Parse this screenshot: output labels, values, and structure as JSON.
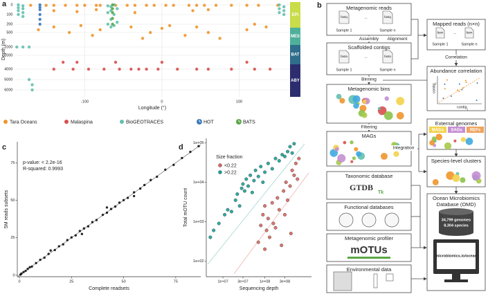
{
  "chart_data": [
    {
      "type": "scatter",
      "panel": "a",
      "xlabel": "Longitude (°)",
      "ylabel": "Depth (m)",
      "xlim": [
        -190,
        165
      ],
      "xticks": [
        -100,
        0,
        100
      ],
      "ylim": [
        -40,
        6600
      ],
      "yticks": [
        0,
        100,
        200,
        500,
        1000,
        2000,
        4000,
        5000,
        6000
      ],
      "grid": true,
      "zones": [
        "EPI",
        "MES",
        "BAT",
        "ABY"
      ],
      "zone_colors": [
        "#c9dc4a",
        "#4fb09a",
        "#2f6d8c",
        "#2b2d6e"
      ],
      "series": [
        {
          "name": "Tara Oceans",
          "color": "#f0952b",
          "x": [
            -170,
            -150,
            -140,
            -125,
            -110,
            -100,
            -85,
            -80,
            -60,
            -45,
            -35,
            -20,
            -10,
            5,
            15,
            35,
            45,
            55,
            70,
            90,
            110,
            125,
            150,
            -140,
            -110,
            -85,
            -35,
            40,
            60,
            -160,
            -140,
            -120,
            -105,
            -90,
            -80,
            -40,
            -25,
            -15,
            0,
            10,
            30,
            45,
            60,
            75,
            110,
            120,
            135
          ],
          "values": [
            5,
            5,
            5,
            5,
            5,
            5,
            5,
            5,
            5,
            5,
            5,
            5,
            5,
            5,
            5,
            5,
            5,
            5,
            5,
            5,
            5,
            5,
            5,
            60,
            70,
            50,
            80,
            60,
            50,
            400,
            300,
            500,
            250,
            600,
            400,
            300,
            700,
            500,
            350,
            250,
            600,
            300,
            500,
            700,
            400,
            200,
            300
          ]
        },
        {
          "name": "Malaspina",
          "color": "#d7504e",
          "x": [
            -140,
            -115,
            -95,
            -75,
            -55,
            -40,
            -30,
            -20,
            -5,
            20,
            45,
            60,
            90,
            120,
            140,
            -128,
            -110,
            -60,
            0,
            110
          ],
          "values": [
            4000,
            4000,
            4000,
            4000,
            4000,
            4000,
            4000,
            4000,
            4000,
            4000,
            4000,
            4000,
            4000,
            4000,
            4000,
            3000,
            3000,
            3000,
            3000,
            3000
          ]
        },
        {
          "name": "BioGEOTRACES",
          "color": "#62c0ae",
          "x": [
            -186,
            -186,
            -186,
            -186,
            -180,
            -180,
            -180,
            -180,
            -70,
            -70,
            -70,
            -66,
            -66,
            -66,
            -66,
            -62,
            -62,
            -62,
            -58,
            -58,
            152,
            152,
            152,
            158,
            158,
            158,
            -188,
            -180,
            -172,
            -172,
            -168,
            -168
          ],
          "values": [
            0,
            30,
            60,
            100,
            10,
            40,
            80,
            120,
            10,
            80,
            200,
            20,
            60,
            150,
            300,
            0,
            100,
            250,
            40,
            180,
            0,
            40,
            80,
            20,
            60,
            100,
            1000,
            1000,
            1000,
            5000,
            5500,
            6000
          ]
        },
        {
          "name": "HOT",
          "color": "#3d7ab8",
          "x": [
            -158,
            -158,
            -158,
            -158,
            -158,
            -158
          ],
          "values": [
            0,
            25,
            50,
            100,
            150,
            200
          ]
        },
        {
          "name": "BATS",
          "color": "#5aa645",
          "x": [
            -64,
            -64,
            -64,
            -64,
            -64
          ],
          "values": [
            0,
            40,
            80,
            140,
            200
          ]
        }
      ]
    },
    {
      "type": "scatter",
      "panel": "c",
      "xlabel": "Complete readsets",
      "ylabel": "5M reads subsets",
      "annotations": [
        "p-value: < 2.2e-16",
        "R-squared: 0.9993"
      ],
      "xlim": [
        -1,
        87
      ],
      "xticks": [
        0,
        25,
        50,
        75
      ],
      "ylim": [
        -1,
        89
      ],
      "yticks": [
        0,
        25,
        50,
        75
      ],
      "color": "#111111",
      "x": [
        0.5,
        1,
        2,
        3,
        4,
        5,
        6,
        8,
        10,
        12,
        14,
        15,
        17,
        19,
        21,
        23,
        25,
        27,
        29,
        31,
        33,
        35,
        37,
        40,
        42,
        44,
        46,
        48,
        50,
        52,
        55,
        58,
        60,
        63,
        66,
        70,
        74,
        78,
        82,
        86,
        30,
        42,
        55
      ],
      "values": [
        0.4,
        1.1,
        2.1,
        2.9,
        4.2,
        5.3,
        5.8,
        8.1,
        10.3,
        11.7,
        14.2,
        16.5,
        16.8,
        19.3,
        20.6,
        23.4,
        25.2,
        26.6,
        29.5,
        31.2,
        32.6,
        35.4,
        36.8,
        40.3,
        41.7,
        44.2,
        45.8,
        48.4,
        50.1,
        51.6,
        55.3,
        57.8,
        60.2,
        63.5,
        65.7,
        70.4,
        73.6,
        78.2,
        82.3,
        86.1,
        27.5,
        45.2,
        52.8
      ]
    },
    {
      "type": "scatter",
      "panel": "d",
      "xlabel": "Sequencing depth",
      "ylabel": "Total mOTU count",
      "log": true,
      "legend_title": "Size fraction",
      "xlim": [
        4000000.0,
        1300000000.0
      ],
      "xticks": [
        {
          "value": 10000000.0,
          "label": "1e+07"
        },
        {
          "value": 30000000.0,
          "label": "3e+07"
        },
        {
          "value": 100000000.0,
          "label": "1e+08"
        },
        {
          "value": 300000000.0,
          "label": "3e+08"
        }
      ],
      "ylim": [
        40,
        130000
      ],
      "yticks": [
        {
          "value": 100,
          "label": "1e+02"
        },
        {
          "value": 1000,
          "label": "1e+03"
        },
        {
          "value": 10000,
          "label": "1e+04"
        },
        {
          "value": 100000,
          "label": "1e+05"
        }
      ],
      "series": [
        {
          "name": "<0.22",
          "color": "#d8675e",
          "x": [
            70000000.0,
            80000000.0,
            90000000.0,
            100000000.0,
            100000000.0,
            110000000.0,
            120000000.0,
            130000000.0,
            150000000.0,
            160000000.0,
            180000000.0,
            200000000.0,
            220000000.0,
            250000000.0,
            280000000.0,
            300000000.0,
            320000000.0,
            350000000.0,
            400000000.0,
            420000000.0,
            450000000.0,
            500000000.0,
            550000000.0,
            600000000.0,
            650000000.0
          ],
          "values": [
            300,
            800,
            1500,
            200,
            2500,
            600,
            1200,
            400,
            3000,
            900,
            700,
            4000,
            2000,
            250,
            6000,
            1500,
            10000,
            3500,
            8000,
            500,
            20000,
            15000,
            30000,
            12000,
            40000
          ]
        },
        {
          "name": ">0.22",
          "color": "#17a398",
          "x": [
            5000000.0,
            6000000.0,
            8000000.0,
            11000000.0,
            13000000.0,
            16000000.0,
            20000000.0,
            22000000.0,
            25000000.0,
            28000000.0,
            30000000.0,
            33000000.0,
            36000000.0,
            40000000.0,
            45000000.0,
            50000000.0,
            55000000.0,
            60000000.0,
            70000000.0,
            80000000.0,
            90000000.0,
            100000000.0,
            120000000.0,
            150000000.0,
            180000000.0,
            220000000.0,
            260000000.0,
            300000000.0,
            350000000.0,
            400000000.0,
            450000000.0,
            500000000.0
          ],
          "values": [
            400,
            600,
            900,
            1500,
            2000,
            1800,
            3500,
            5000,
            2500,
            7000,
            9000,
            6000,
            12000,
            8000,
            15000,
            5500,
            11000,
            20000,
            14000,
            25000,
            10000,
            18000,
            30000,
            22000,
            40000,
            35000,
            50000,
            45000,
            60000,
            80000,
            55000,
            95000
          ]
        }
      ]
    }
  ],
  "diagram": {
    "letter": "b",
    "reads": {
      "title": "Metagenomic reads",
      "file": "fastq",
      "sample_first": "Sample 1",
      "sample_last": "Sample n",
      "ellipsis": "..."
    },
    "contigs": {
      "title": "Scaffolded contigs",
      "file": "fasta",
      "sample_first": "Sample 1",
      "sample_last": "Sample n",
      "ellipsis": "..."
    },
    "mapped": {
      "title": "Mapped reads (n×n)",
      "file": "bam",
      "sample_first": "Sample 1",
      "sample_last": "Sample n",
      "ellipsis": "..."
    },
    "correlation": {
      "title": "Abundance correlation",
      "x_label": "contig",
      "x_sub": "j",
      "y_label": "contig",
      "y_sub": "i"
    },
    "bins": {
      "title": "Metagenomic bins"
    },
    "mags": {
      "title": "MAGs"
    },
    "external": {
      "title": "External genomes",
      "tags": [
        "MAGs",
        "SAGs",
        "REFs"
      ]
    },
    "species": {
      "title": "Species-level clusters"
    },
    "taxonomy": {
      "title": "Taxonomic database",
      "logo": "GTDB",
      "logo_sub": "Tk"
    },
    "functional": {
      "title": "Functional databases"
    },
    "profiler": {
      "title": "Metagenomic profiler",
      "logo": "mOTUs"
    },
    "environment": {
      "title": "Environmental data"
    },
    "omd": {
      "title_lines": [
        "Ocean Microbiomics",
        "Database (OMD)"
      ],
      "stats": [
        "34,799 genomes",
        "8,304 species"
      ],
      "url": "microbiomics.io/ocean"
    },
    "steps": {
      "assembly": "Assembly",
      "alignment": "Alignment",
      "correlation": "Correlation",
      "binning": "Binning",
      "filtering": "Filtering",
      "integration": "Integration"
    }
  }
}
